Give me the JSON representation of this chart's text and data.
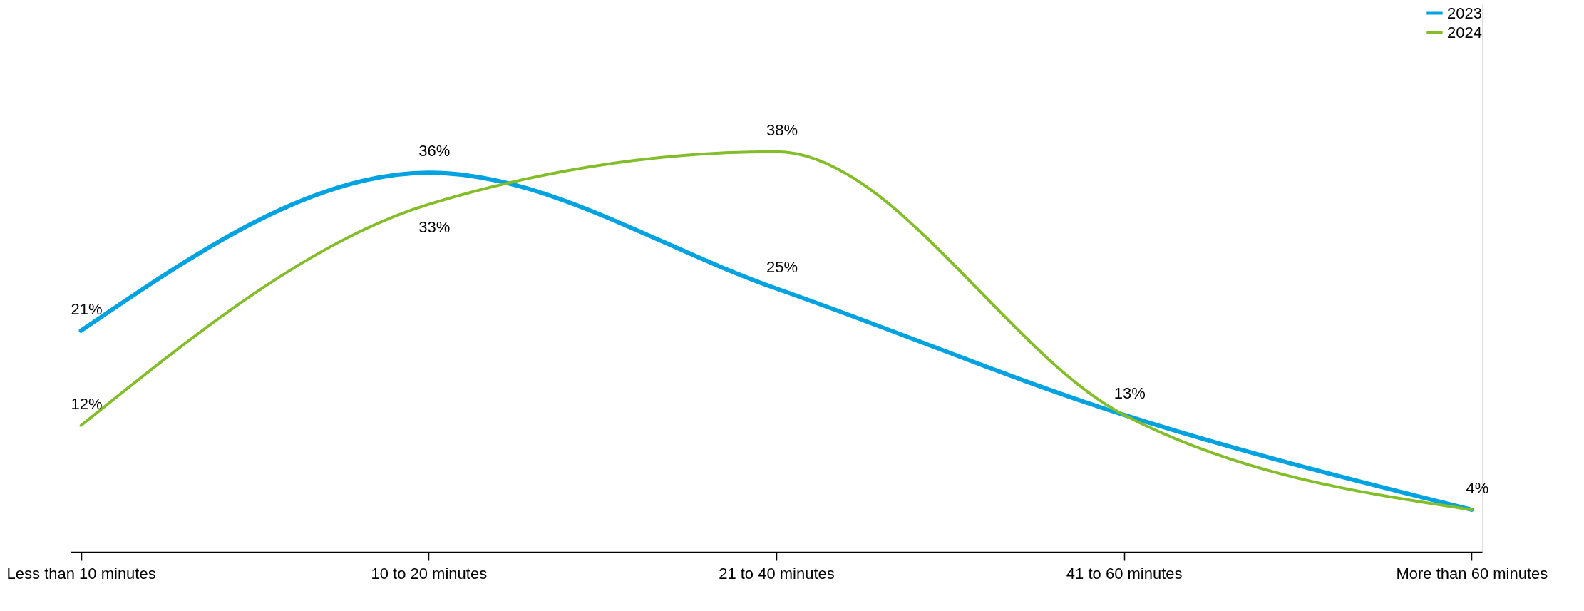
{
  "chart_data": {
    "type": "line",
    "categories": [
      "Less than 10 minutes",
      "10 to 20 minutes",
      "21 to 40 minutes",
      "41 to 60 minutes",
      "More than 60 minutes"
    ],
    "series": [
      {
        "name": "2023",
        "color": "#00a3e0",
        "values": [
          21,
          36,
          25,
          13,
          4
        ],
        "value_labels": [
          "21%",
          "36%",
          "25%",
          null,
          null
        ]
      },
      {
        "name": "2024",
        "color": "#84bd2a",
        "values": [
          12,
          33,
          38,
          13,
          4
        ],
        "value_labels": [
          "12%",
          "33%",
          "38%",
          "13%",
          "4%"
        ]
      }
    ],
    "legend": "top right",
    "grid": false,
    "marker": "none",
    "line_style": "solid"
  }
}
